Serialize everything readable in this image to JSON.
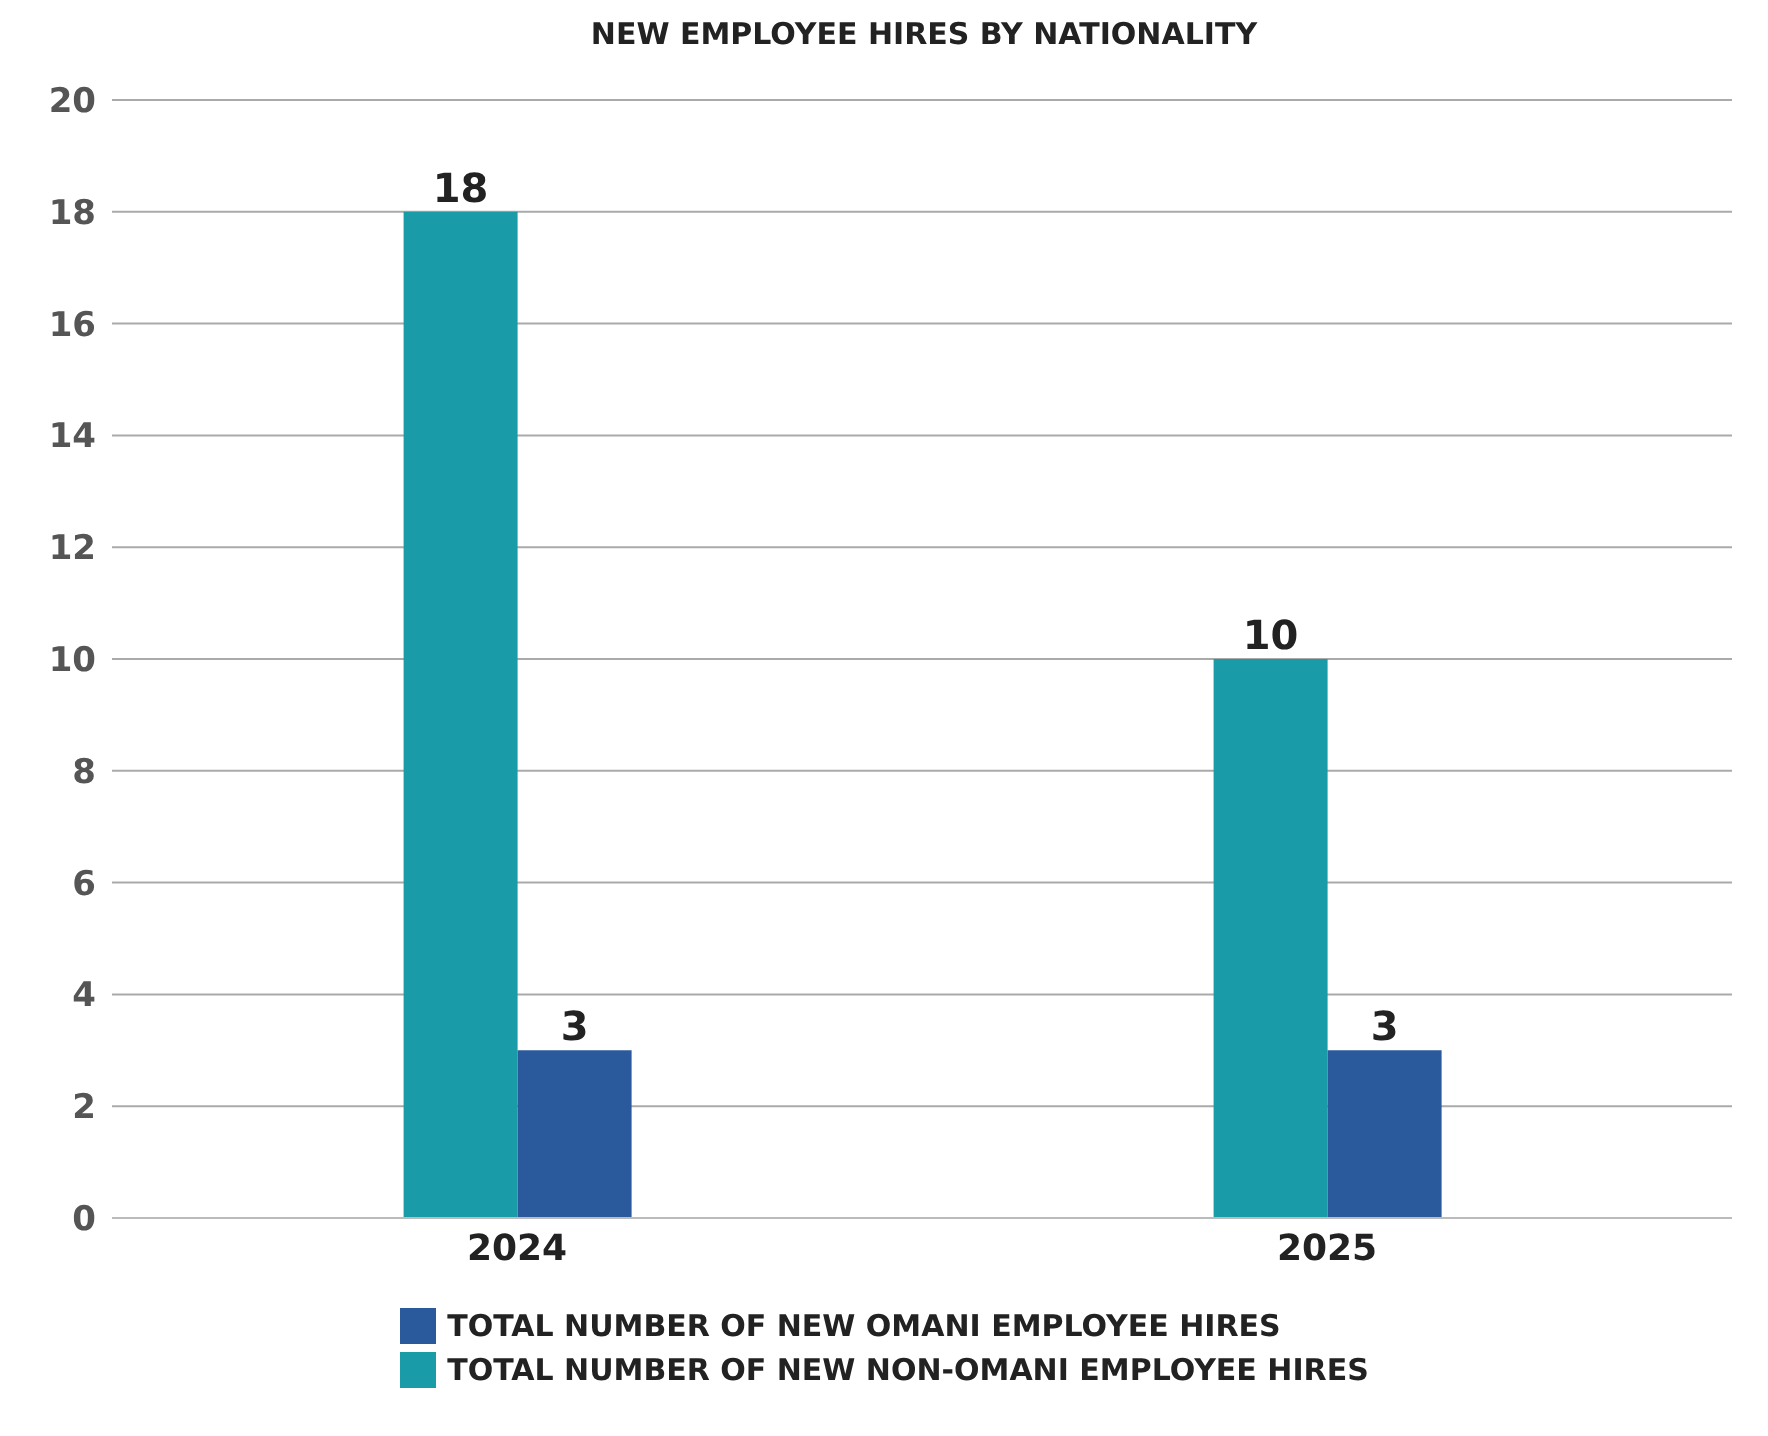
{
  "chart_data": {
    "type": "bar",
    "title": "NEW EMPLOYEE HIRES BY NATIONALITY",
    "categories": [
      "2024",
      "2025"
    ],
    "series": [
      {
        "name": "TOTAL NUMBER OF NEW NON-OMANI EMPLOYEE HIRES",
        "color": "#1a9ba8",
        "values": [
          18,
          10
        ]
      },
      {
        "name": "TOTAL NUMBER OF NEW OMANI EMPLOYEE HIRES",
        "color": "#2a5a9c",
        "values": [
          3,
          3
        ]
      }
    ],
    "ylim": [
      0,
      20
    ],
    "yticks": [
      0,
      2,
      4,
      6,
      8,
      10,
      12,
      14,
      16,
      18,
      20
    ],
    "grid": "y",
    "legend": "bottom",
    "data_labels": true
  }
}
